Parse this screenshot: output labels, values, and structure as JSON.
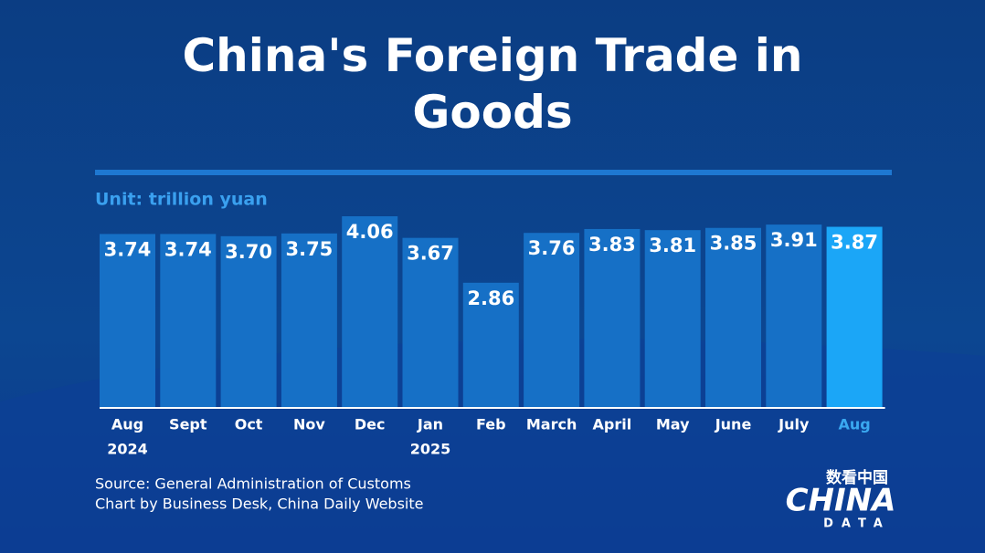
{
  "chart_data": {
    "type": "bar",
    "title": "China's Foreign Trade in Goods",
    "subtitle": "Unit: trillion yuan",
    "categories": [
      "Aug",
      "Sept",
      "Oct",
      "Nov",
      "Dec",
      "Jan",
      "Feb",
      "March",
      "April",
      "May",
      "June",
      "July",
      "Aug"
    ],
    "category_years": [
      "2024",
      null,
      null,
      null,
      null,
      "2025",
      null,
      null,
      null,
      null,
      null,
      null,
      null
    ],
    "values": [
      3.74,
      3.74,
      3.7,
      3.75,
      4.06,
      3.67,
      2.86,
      3.76,
      3.83,
      3.81,
      3.85,
      3.91,
      3.87
    ],
    "value_labels": [
      "3.74",
      "3.74",
      "3.70",
      "3.75",
      "4.06",
      "3.67",
      "2.86",
      "3.76",
      "3.83",
      "3.81",
      "3.85",
      "3.91",
      "3.87"
    ],
    "colors": [
      "#1670c6",
      "#1670c6",
      "#1670c6",
      "#1670c6",
      "#1670c6",
      "#1670c6",
      "#1670c6",
      "#1670c6",
      "#1670c6",
      "#1670c6",
      "#1670c6",
      "#1670c6",
      "#1ba6f7"
    ],
    "ylim": [
      0.6,
      4.2
    ],
    "source": "Source: General Administration of Customs",
    "credit": "Chart by Business Desk, China Daily Website",
    "logo": {
      "top": "数看中国",
      "main": "CHINA",
      "bottom": "DATA"
    }
  }
}
